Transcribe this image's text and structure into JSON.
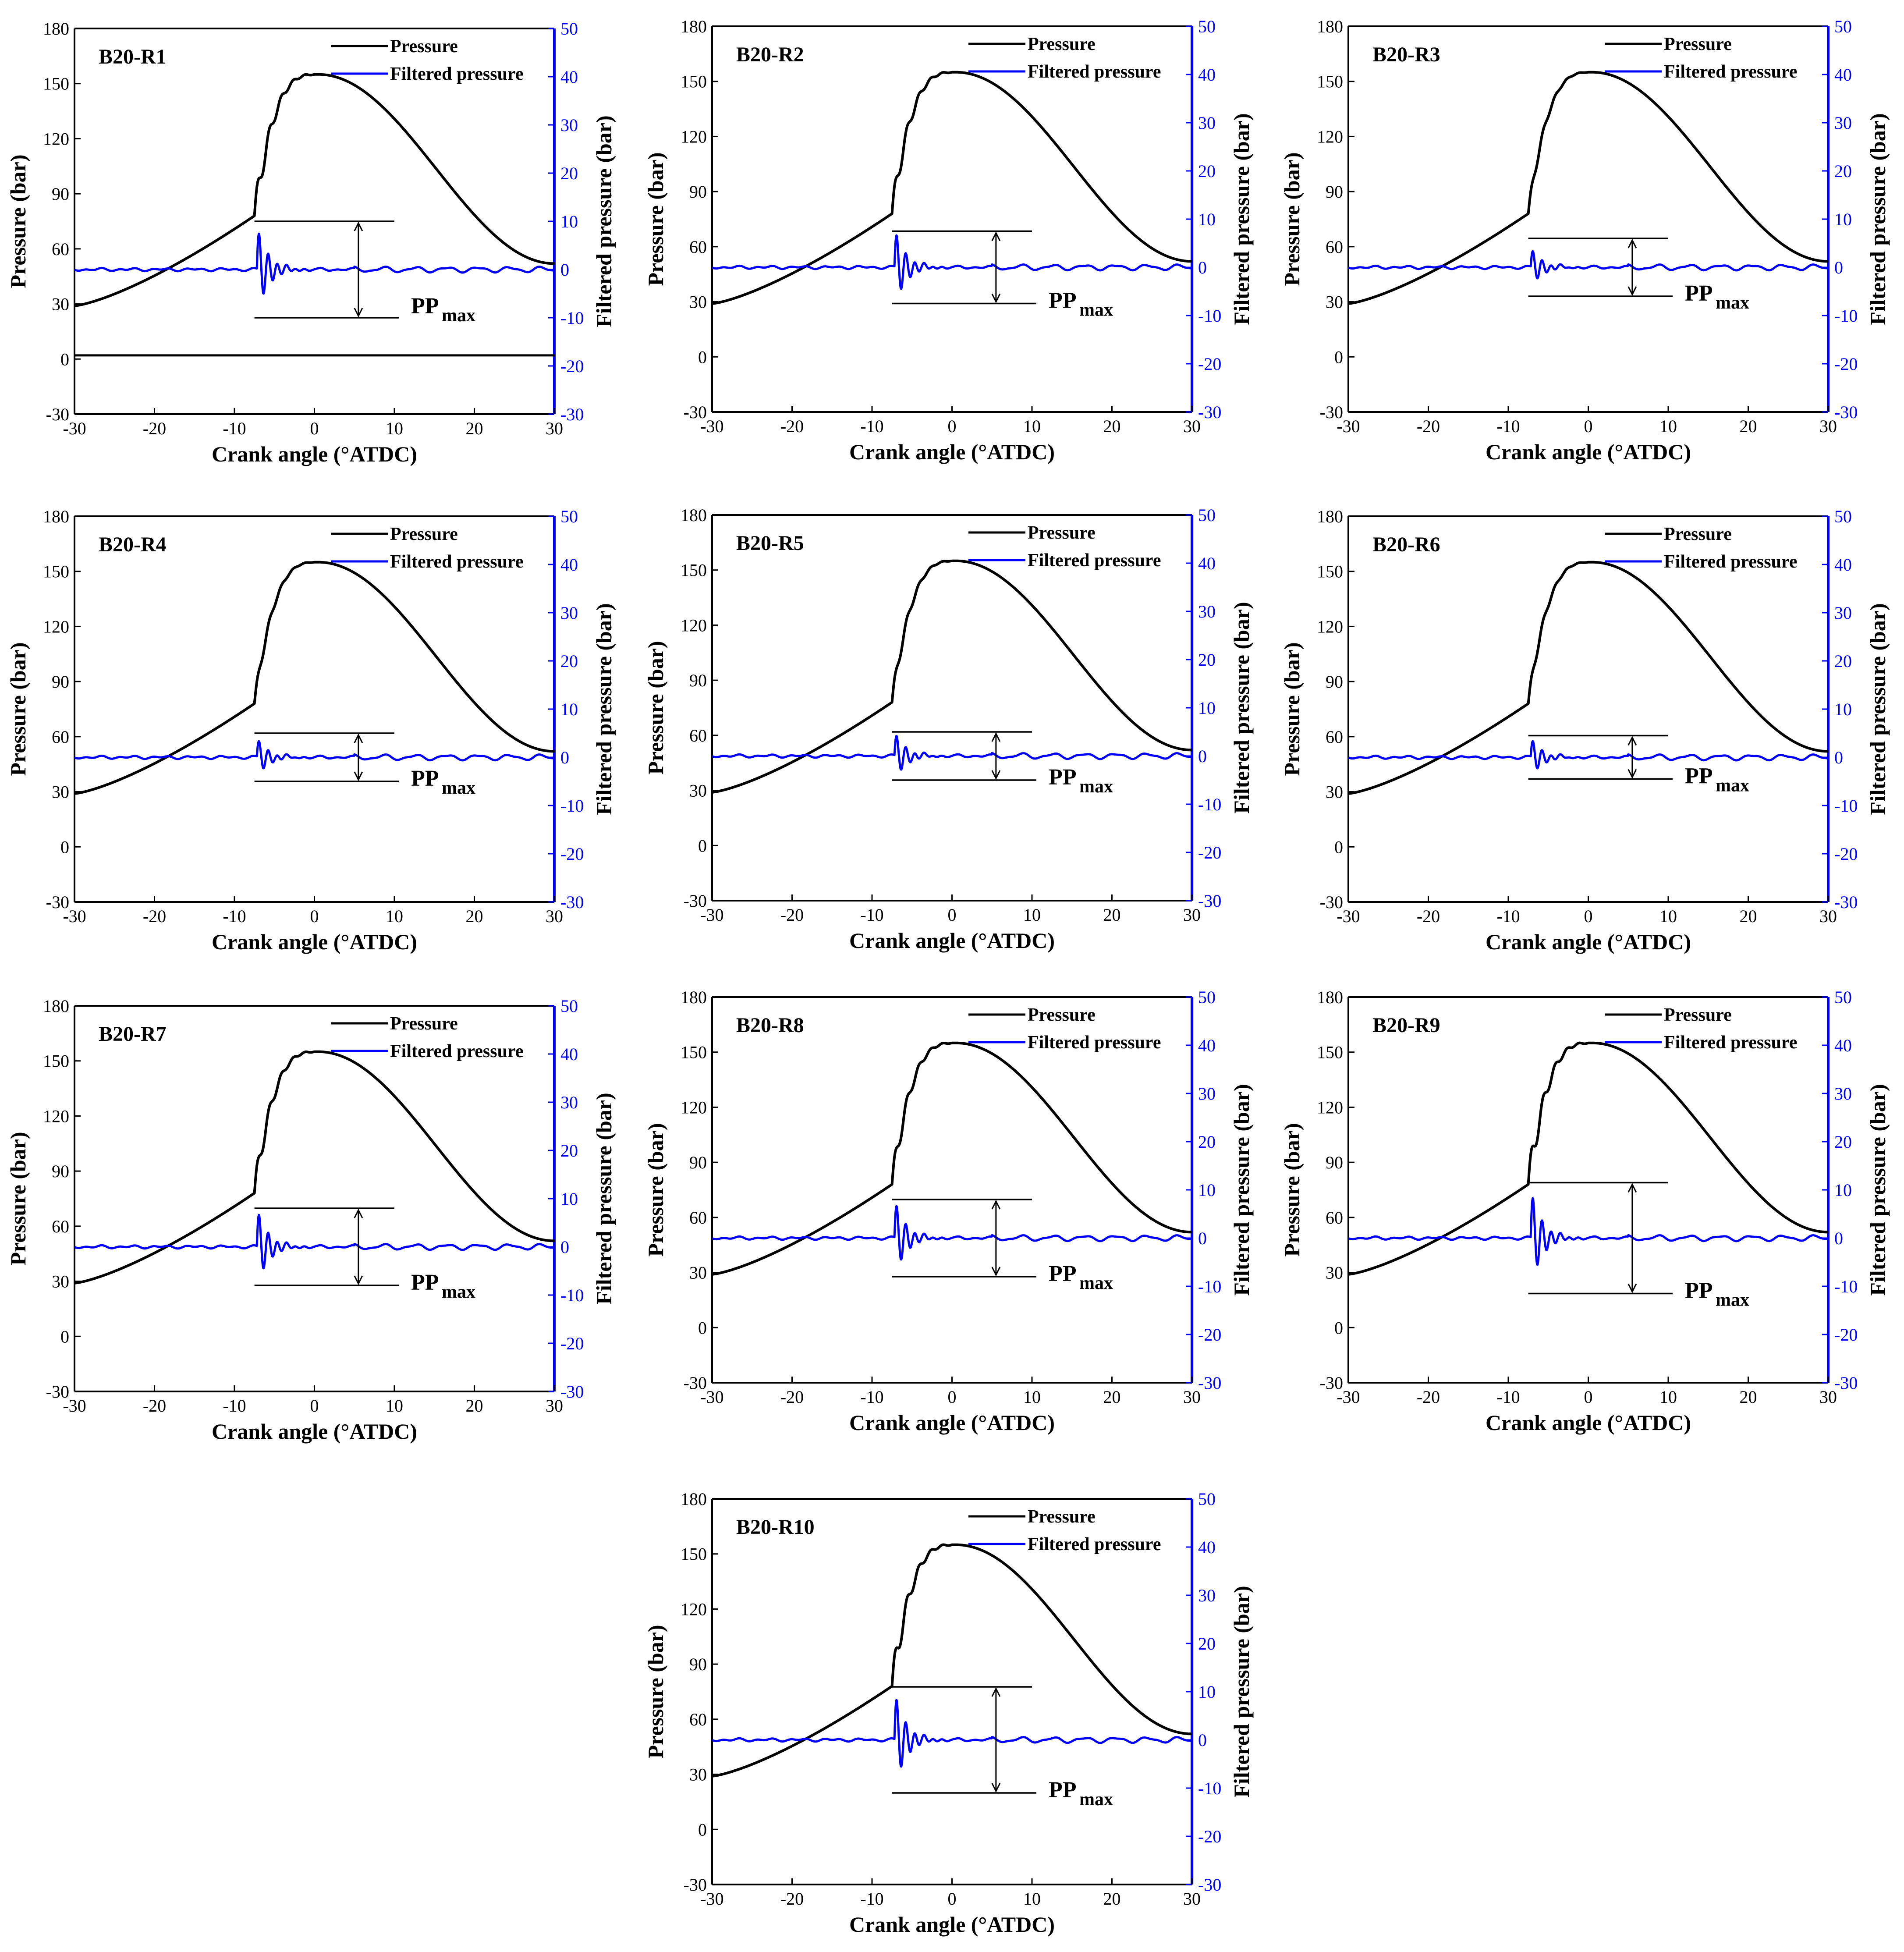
{
  "colors": {
    "pressure": "#000000",
    "filtered": "#0000ff",
    "axis_left": "#000000",
    "axis_right": "#0000ff"
  },
  "common": {
    "xlabel": "Crank angle (°ATDC)",
    "ylabel": "Pressure (bar)",
    "y2label": "Filtered pressure (bar)",
    "legend_pressure": "Pressure",
    "legend_filtered": "Filtered pressure",
    "pp_main": "PP",
    "pp_sub": "max"
  },
  "chart_data": [
    {
      "type": "line",
      "title": "B20-R1",
      "xlim": [
        -30,
        30
      ],
      "ylim": [
        -30,
        180
      ],
      "y2lim": [
        -30,
        50
      ],
      "xticks": [
        -30,
        -20,
        -10,
        0,
        10,
        20,
        30
      ],
      "yticks": [
        -30,
        0,
        30,
        60,
        90,
        120,
        150,
        180
      ],
      "y2ticks": [
        -30,
        -20,
        -10,
        0,
        10,
        20,
        30,
        40,
        50
      ],
      "peak_pressure": 155,
      "pp_max": 20,
      "osc_amplitude": 9,
      "steps": 3,
      "baseline_pressure": 2,
      "series": [
        {
          "name": "Pressure",
          "axis": "left"
        },
        {
          "name": "Filtered pressure",
          "axis": "right"
        }
      ]
    },
    {
      "type": "line",
      "title": "B20-R2",
      "xlim": [
        -30,
        30
      ],
      "ylim": [
        -30,
        180
      ],
      "y2lim": [
        -30,
        50
      ],
      "xticks": [
        -30,
        -20,
        -10,
        0,
        10,
        20,
        30
      ],
      "yticks": [
        -30,
        0,
        30,
        60,
        90,
        120,
        150,
        180
      ],
      "y2ticks": [
        -30,
        -20,
        -10,
        0,
        10,
        20,
        30,
        40,
        50
      ],
      "peak_pressure": 155,
      "pp_max": 15,
      "osc_amplitude": 8,
      "steps": 2,
      "series": [
        {
          "name": "Pressure",
          "axis": "left"
        },
        {
          "name": "Filtered pressure",
          "axis": "right"
        }
      ]
    },
    {
      "type": "line",
      "title": "B20-R3",
      "xlim": [
        -30,
        30
      ],
      "ylim": [
        -30,
        180
      ],
      "y2lim": [
        -30,
        50
      ],
      "xticks": [
        -30,
        -20,
        -10,
        0,
        10,
        20,
        30
      ],
      "yticks": [
        -30,
        0,
        30,
        60,
        90,
        120,
        150,
        180
      ],
      "y2ticks": [
        -30,
        -20,
        -10,
        0,
        10,
        20,
        30,
        40,
        50
      ],
      "peak_pressure": 155,
      "pp_max": 12,
      "osc_amplitude": 4,
      "steps": 2,
      "series": [
        {
          "name": "Pressure",
          "axis": "left"
        },
        {
          "name": "Filtered pressure",
          "axis": "right"
        }
      ]
    },
    {
      "type": "line",
      "title": "B20-R4",
      "xlim": [
        -30,
        30
      ],
      "ylim": [
        -30,
        180
      ],
      "y2lim": [
        -30,
        50
      ],
      "xticks": [
        -30,
        -20,
        -10,
        0,
        10,
        20,
        30
      ],
      "yticks": [
        -30,
        0,
        30,
        60,
        90,
        120,
        150,
        180
      ],
      "y2ticks": [
        -30,
        -20,
        -10,
        0,
        10,
        20,
        30,
        40,
        50
      ],
      "peak_pressure": 155,
      "pp_max": 10,
      "osc_amplitude": 4,
      "steps": 1,
      "series": [
        {
          "name": "Pressure",
          "axis": "left"
        },
        {
          "name": "Filtered pressure",
          "axis": "right"
        }
      ]
    },
    {
      "type": "line",
      "title": "B20-R5",
      "xlim": [
        -30,
        30
      ],
      "ylim": [
        -30,
        180
      ],
      "y2lim": [
        -30,
        50
      ],
      "xticks": [
        -30,
        -20,
        -10,
        0,
        10,
        20,
        30
      ],
      "yticks": [
        -30,
        0,
        30,
        60,
        90,
        120,
        150,
        180
      ],
      "y2ticks": [
        -30,
        -20,
        -10,
        0,
        10,
        20,
        30,
        40,
        50
      ],
      "peak_pressure": 155,
      "pp_max": 10,
      "osc_amplitude": 5,
      "steps": 1,
      "series": [
        {
          "name": "Pressure",
          "axis": "left"
        },
        {
          "name": "Filtered pressure",
          "axis": "right"
        }
      ]
    },
    {
      "type": "line",
      "title": "B20-R6",
      "xlim": [
        -30,
        30
      ],
      "ylim": [
        -30,
        180
      ],
      "y2lim": [
        -30,
        50
      ],
      "xticks": [
        -30,
        -20,
        -10,
        0,
        10,
        20,
        30
      ],
      "yticks": [
        -30,
        0,
        30,
        60,
        90,
        120,
        150,
        180
      ],
      "y2ticks": [
        -30,
        -20,
        -10,
        0,
        10,
        20,
        30,
        40,
        50
      ],
      "peak_pressure": 155,
      "pp_max": 9,
      "osc_amplitude": 4,
      "steps": 1,
      "series": [
        {
          "name": "Pressure",
          "axis": "left"
        },
        {
          "name": "Filtered pressure",
          "axis": "right"
        }
      ]
    },
    {
      "type": "line",
      "title": "B20-R7",
      "xlim": [
        -30,
        30
      ],
      "ylim": [
        -30,
        180
      ],
      "y2lim": [
        -30,
        50
      ],
      "xticks": [
        -30,
        -20,
        -10,
        0,
        10,
        20,
        30
      ],
      "yticks": [
        -30,
        0,
        30,
        60,
        90,
        120,
        150,
        180
      ],
      "y2ticks": [
        -30,
        -20,
        -10,
        0,
        10,
        20,
        30,
        40,
        50
      ],
      "peak_pressure": 155,
      "pp_max": 16,
      "osc_amplitude": 8,
      "steps": 3,
      "series": [
        {
          "name": "Pressure",
          "axis": "left"
        },
        {
          "name": "Filtered pressure",
          "axis": "right"
        }
      ]
    },
    {
      "type": "line",
      "title": "B20-R8",
      "xlim": [
        -30,
        30
      ],
      "ylim": [
        -30,
        180
      ],
      "y2lim": [
        -30,
        50
      ],
      "xticks": [
        -30,
        -20,
        -10,
        0,
        10,
        20,
        30
      ],
      "yticks": [
        -30,
        0,
        30,
        60,
        90,
        120,
        150,
        180
      ],
      "y2ticks": [
        -30,
        -20,
        -10,
        0,
        10,
        20,
        30,
        40,
        50
      ],
      "peak_pressure": 155,
      "pp_max": 16,
      "osc_amplitude": 8,
      "steps": 3,
      "series": [
        {
          "name": "Pressure",
          "axis": "left"
        },
        {
          "name": "Filtered pressure",
          "axis": "right"
        }
      ]
    },
    {
      "type": "line",
      "title": "B20-R9",
      "xlim": [
        -30,
        30
      ],
      "ylim": [
        -30,
        180
      ],
      "y2lim": [
        -30,
        50
      ],
      "xticks": [
        -30,
        -20,
        -10,
        0,
        10,
        20,
        30
      ],
      "yticks": [
        -30,
        0,
        30,
        60,
        90,
        120,
        150,
        180
      ],
      "y2ticks": [
        -30,
        -20,
        -10,
        0,
        10,
        20,
        30,
        40,
        50
      ],
      "peak_pressure": 155,
      "pp_max": 23,
      "osc_amplitude": 10,
      "steps": 3,
      "series": [
        {
          "name": "Pressure",
          "axis": "left"
        },
        {
          "name": "Filtered pressure",
          "axis": "right"
        }
      ]
    },
    {
      "type": "line",
      "title": "B20-R10",
      "xlim": [
        -30,
        30
      ],
      "ylim": [
        -30,
        180
      ],
      "y2lim": [
        -30,
        50
      ],
      "xticks": [
        -30,
        -20,
        -10,
        0,
        10,
        20,
        30
      ],
      "yticks": [
        -30,
        0,
        30,
        60,
        90,
        120,
        150,
        180
      ],
      "y2ticks": [
        -30,
        -20,
        -10,
        0,
        10,
        20,
        30,
        40,
        50
      ],
      "peak_pressure": 155,
      "pp_max": 22,
      "osc_amplitude": 10,
      "steps": 3,
      "series": [
        {
          "name": "Pressure",
          "axis": "left"
        },
        {
          "name": "Filtered pressure",
          "axis": "right"
        }
      ]
    }
  ]
}
